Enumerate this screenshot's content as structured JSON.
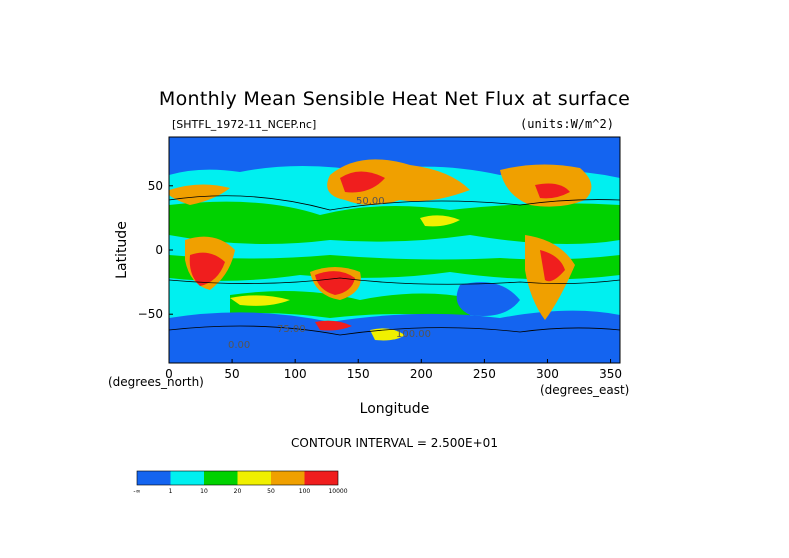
{
  "chart_data": {
    "type": "heatmap",
    "title": "Monthly Mean Sensible Heat Net Flux at surface",
    "file_label": "[SHTFL_1972-11_NCEP.nc]",
    "units_label": "(units:W/m^2)",
    "xlabel": "Longitude",
    "ylabel": "Latitude",
    "x_units_label": "(degrees_east)",
    "y_units_label": "(degrees_north)",
    "xlim": [
      0,
      357.5
    ],
    "ylim": [
      -88,
      88
    ],
    "x_ticks": [
      "0",
      "50",
      "100",
      "150",
      "200",
      "250",
      "300",
      "350"
    ],
    "y_ticks": [
      "50",
      "0",
      "−50"
    ],
    "contour_interval_text": "CONTOUR INTERVAL = 2.500E+01",
    "colorbar": {
      "bins": [
        {
          "color": "#1464f0",
          "label": "-∞"
        },
        {
          "color": "#00f0f0",
          "label": "1"
        },
        {
          "color": "#00d200",
          "label": "10"
        },
        {
          "color": "#f0f000",
          "label": "20"
        },
        {
          "color": "#f0a000",
          "label": "50"
        },
        {
          "color": "#f01e1e",
          "label": "100"
        }
      ],
      "end_label": "10000"
    },
    "contour_labels": [
      "50.00",
      "0.00",
      "75.00",
      "100.00"
    ]
  }
}
